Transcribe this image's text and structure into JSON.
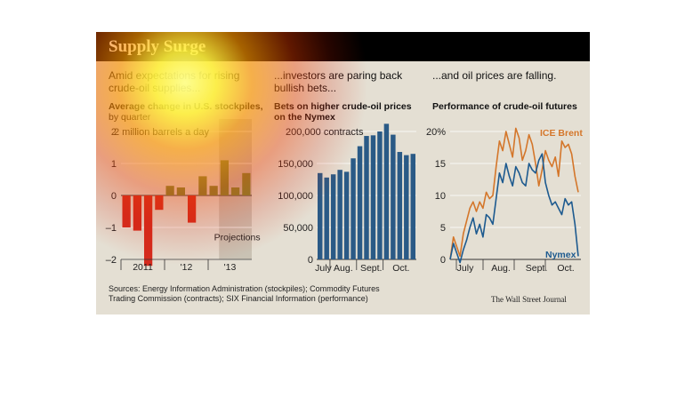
{
  "title": "Supply Surge",
  "panel1": {
    "intro": [
      "Amid expectations for rising",
      "crude-oil supplies..."
    ],
    "sub_bold": "Average change in U.S. stockpiles,",
    "sub_normal": "by quarter",
    "unit_label": "2 million barrels a day",
    "projections_label": "Projections"
  },
  "panel2": {
    "intro": [
      "...investors are paring back",
      "bullish bets..."
    ],
    "sub_bold": [
      "Bets on higher crude-oil prices",
      "on the Nymex"
    ],
    "unit_label": "200,000 contracts"
  },
  "panel3": {
    "intro": [
      "...and oil prices are falling."
    ],
    "sub_bold": [
      "Performance of crude-oil futures"
    ],
    "legend": [
      "ICE Brent",
      "Nymex"
    ]
  },
  "sources": [
    "Sources: Energy Information Administration (stockpiles); Commodity Futures",
    "Trading Commission (contracts); SIX Financial Information (performance)"
  ],
  "credit": "The Wall Street Journal",
  "colors": {
    "red": "#d42b1e",
    "green": "#7a8a32",
    "blue": "#2a5a86",
    "brent": "#d4762a",
    "nymex": "#1d5a8f",
    "background": "#e4dfd3"
  },
  "chart_data": [
    {
      "type": "bar",
      "title": "Average change in U.S. stockpiles, by quarter",
      "ylabel": "million barrels a day",
      "ylim": [
        -2,
        2
      ],
      "yticks": [
        -2,
        -1,
        0,
        1,
        2
      ],
      "ytick_labels": [
        "–2",
        "–1",
        "0",
        "1",
        "2"
      ],
      "xtick_labels": [
        "2011",
        "'12",
        "'13"
      ],
      "values": [
        -1.0,
        -1.1,
        -2.2,
        -0.45,
        0.3,
        0.25,
        -0.85,
        0.6,
        0.3,
        1.1,
        0.25,
        0.7
      ],
      "projections_from_index": 9
    },
    {
      "type": "bar",
      "title": "Bets on higher crude-oil prices on the Nymex",
      "ylabel": "contracts",
      "ylim": [
        0,
        200000
      ],
      "yticks": [
        0,
        50000,
        100000,
        150000,
        200000
      ],
      "ytick_labels": [
        "0",
        "50,000",
        "100,000",
        "150,000"
      ],
      "xtick_labels": [
        "July",
        "Aug.",
        "Sept.",
        "Oct."
      ],
      "values": [
        135000,
        128000,
        133000,
        140000,
        137000,
        158000,
        177000,
        193000,
        194000,
        200000,
        212000,
        195000,
        168000,
        163000,
        165000
      ]
    },
    {
      "type": "line",
      "title": "Performance of crude-oil futures",
      "ylabel": "%",
      "ylim": [
        0,
        20
      ],
      "yticks": [
        0,
        5,
        10,
        15,
        20
      ],
      "ytick_labels": [
        "0",
        "5",
        "10",
        "15",
        "20%"
      ],
      "xtick_labels": [
        "July",
        "Aug.",
        "Sept.",
        "Oct."
      ],
      "series": [
        {
          "name": "ICE Brent",
          "values": [
            0,
            3.5,
            2,
            0.5,
            4,
            6,
            8,
            9,
            7.5,
            9,
            8,
            10.5,
            9.5,
            10,
            14.5,
            18.5,
            17,
            20,
            18,
            16,
            20.5,
            19,
            15.5,
            17,
            19.5,
            18,
            15,
            11.5,
            14,
            17,
            15.5,
            14.5,
            16,
            13,
            18.5,
            17.5,
            18,
            16.5,
            13,
            10.5
          ]
        },
        {
          "name": "Nymex",
          "values": [
            0,
            2.5,
            1,
            -0.5,
            1.5,
            3,
            5,
            6.5,
            4,
            5.5,
            3.5,
            7,
            6.5,
            5.5,
            9.5,
            13.5,
            12,
            15,
            13,
            11.5,
            14.5,
            13.5,
            12,
            11.5,
            15,
            14,
            13.5,
            15.5,
            16.5,
            12,
            10,
            8.5,
            9,
            8,
            7,
            9.5,
            8.5,
            9,
            5.5,
            0.5
          ]
        }
      ]
    }
  ]
}
